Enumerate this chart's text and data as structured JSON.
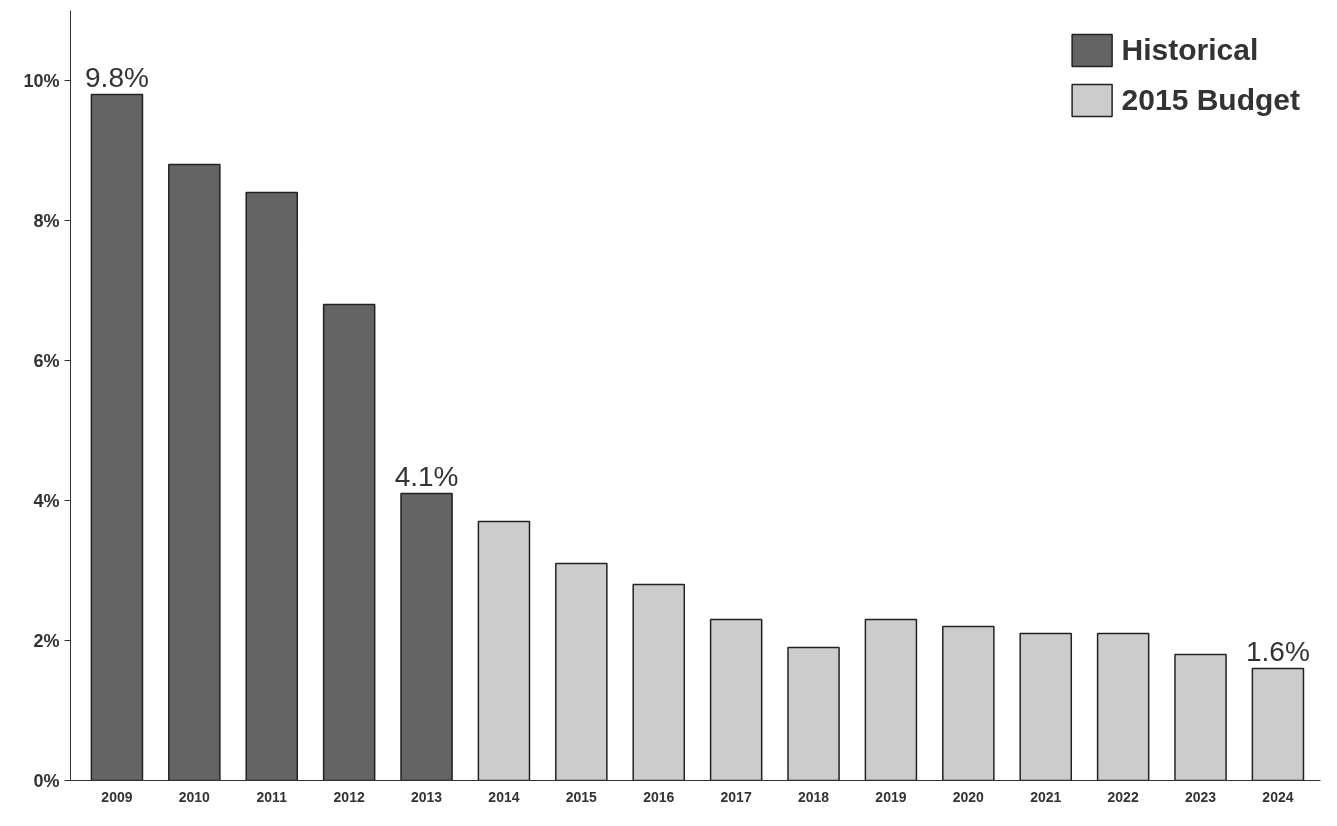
{
  "chart_data": {
    "type": "bar",
    "categories": [
      "2009",
      "2010",
      "2011",
      "2012",
      "2013",
      "2014",
      "2015",
      "2016",
      "2017",
      "2018",
      "2019",
      "2020",
      "2021",
      "2022",
      "2023",
      "2024"
    ],
    "series": [
      {
        "name": "Historical",
        "color": "#646464",
        "values": [
          9.8,
          8.8,
          8.4,
          6.8,
          4.1,
          null,
          null,
          null,
          null,
          null,
          null,
          null,
          null,
          null,
          null,
          null
        ],
        "value_labels": [
          "9.8%",
          null,
          null,
          null,
          "4.1%",
          null,
          null,
          null,
          null,
          null,
          null,
          null,
          null,
          null,
          null,
          null
        ]
      },
      {
        "name": "2015 Budget",
        "color": "#cccccc",
        "values": [
          null,
          null,
          null,
          null,
          null,
          3.7,
          3.1,
          2.8,
          2.3,
          1.9,
          2.3,
          2.2,
          2.1,
          2.1,
          1.8,
          1.6
        ],
        "value_labels": [
          null,
          null,
          null,
          null,
          null,
          null,
          null,
          null,
          null,
          null,
          null,
          null,
          null,
          null,
          null,
          "1.6%"
        ]
      }
    ],
    "ylim": [
      0,
      11
    ],
    "yticks": [
      {
        "value": 0,
        "label": "0%"
      },
      {
        "value": 2,
        "label": "2%"
      },
      {
        "value": 4,
        "label": "4%"
      },
      {
        "value": 6,
        "label": "6%"
      },
      {
        "value": 8,
        "label": "8%"
      },
      {
        "value": 10,
        "label": "10%"
      }
    ],
    "grid": false,
    "legend": "top right"
  }
}
